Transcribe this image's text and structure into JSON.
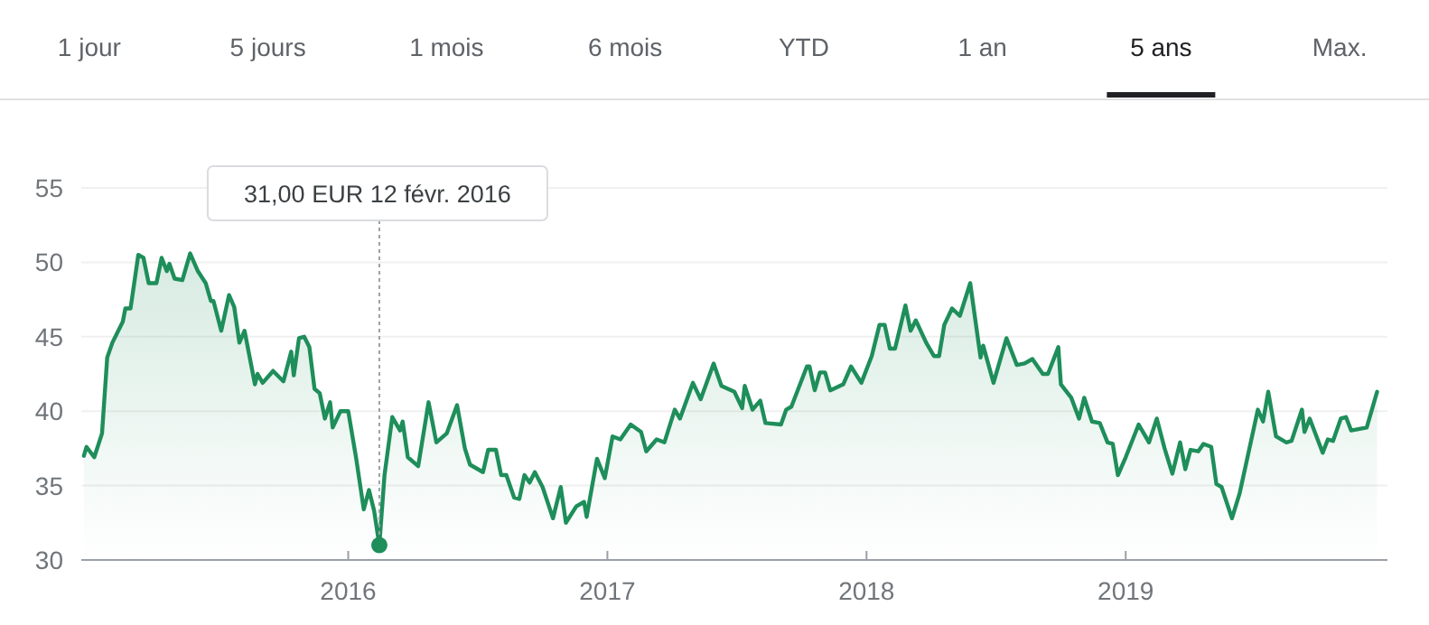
{
  "chart_data": {
    "type": "area",
    "color": "#1e8e5a",
    "x": [
      2014.98,
      2014.99,
      2015.02,
      2015.05,
      2015.07,
      2015.09,
      2015.13,
      2015.14,
      2015.16,
      2015.19,
      2015.21,
      2015.23,
      2015.26,
      2015.28,
      2015.3,
      2015.31,
      2015.33,
      2015.36,
      2015.39,
      2015.42,
      2015.45,
      2015.47,
      2015.48,
      2015.51,
      2015.54,
      2015.56,
      2015.58,
      2015.6,
      2015.64,
      2015.65,
      2015.67,
      2015.71,
      2015.75,
      2015.78,
      2015.79,
      2015.81,
      2015.83,
      2015.85,
      2015.87,
      2015.89,
      2015.91,
      2015.93,
      2015.94,
      2015.97,
      2016.0,
      2016.03,
      2016.06,
      2016.08,
      2016.1,
      2016.12,
      2016.14,
      2016.17,
      2016.2,
      2016.21,
      2016.23,
      2016.27,
      2016.31,
      2016.34,
      2016.38,
      2016.42,
      2016.45,
      2016.47,
      2016.52,
      2016.54,
      2016.57,
      2016.59,
      2016.61,
      2016.64,
      2016.66,
      2016.68,
      2016.7,
      2016.72,
      2016.75,
      2016.79,
      2016.82,
      2016.84,
      2016.88,
      2016.91,
      2016.92,
      2016.96,
      2016.99,
      2017.02,
      2017.05,
      2017.09,
      2017.13,
      2017.15,
      2017.19,
      2017.22,
      2017.26,
      2017.28,
      2017.33,
      2017.36,
      2017.41,
      2017.44,
      2017.49,
      2017.52,
      2017.53,
      2017.56,
      2017.59,
      2017.61,
      2017.67,
      2017.69,
      2017.71,
      2017.77,
      2017.78,
      2017.8,
      2017.82,
      2017.84,
      2017.86,
      2017.91,
      2017.94,
      2017.98,
      2018.02,
      2018.05,
      2018.07,
      2018.09,
      2018.11,
      2018.15,
      2018.17,
      2018.19,
      2018.23,
      2018.26,
      2018.28,
      2018.3,
      2018.33,
      2018.36,
      2018.4,
      2018.44,
      2018.45,
      2018.49,
      2018.54,
      2018.58,
      2018.61,
      2018.64,
      2018.68,
      2018.7,
      2018.74,
      2018.75,
      2018.79,
      2018.82,
      2018.84,
      2018.87,
      2018.9,
      2018.93,
      2018.95,
      2018.97,
      2019.0,
      2019.05,
      2019.09,
      2019.12,
      2019.15,
      2019.18,
      2019.21,
      2019.23,
      2019.25,
      2019.28,
      2019.3,
      2019.33,
      2019.35,
      2019.37,
      2019.41,
      2019.44,
      2019.51,
      2019.53,
      2019.55,
      2019.58,
      2019.62,
      2019.64,
      2019.68,
      2019.69,
      2019.71,
      2019.76,
      2019.78,
      2019.8,
      2019.83,
      2019.85,
      2019.87,
      2019.93,
      2019.97
    ],
    "values": [
      37.0,
      37.6,
      36.9,
      38.5,
      43.6,
      44.6,
      46.0,
      46.9,
      46.9,
      50.5,
      50.3,
      48.6,
      48.6,
      50.3,
      49.4,
      49.9,
      48.9,
      48.8,
      50.6,
      49.4,
      48.6,
      47.4,
      47.4,
      45.4,
      47.8,
      47.0,
      44.6,
      45.4,
      41.8,
      42.5,
      41.9,
      42.7,
      42.0,
      44.0,
      42.4,
      44.9,
      45.0,
      44.3,
      41.5,
      41.2,
      39.5,
      40.6,
      38.9,
      40.0,
      40.0,
      36.9,
      33.4,
      34.7,
      33.3,
      31.0,
      35.7,
      39.6,
      38.7,
      39.3,
      36.9,
      36.3,
      40.6,
      37.9,
      38.5,
      40.4,
      37.5,
      36.4,
      35.9,
      37.4,
      37.4,
      35.7,
      35.7,
      34.2,
      34.1,
      35.7,
      35.2,
      35.9,
      34.9,
      32.8,
      34.9,
      32.5,
      33.6,
      33.9,
      32.9,
      36.8,
      35.5,
      38.3,
      38.1,
      39.1,
      38.6,
      37.3,
      38.1,
      37.9,
      40.1,
      39.5,
      41.9,
      40.8,
      43.2,
      41.7,
      41.3,
      40.2,
      41.7,
      40.1,
      40.7,
      39.2,
      39.1,
      40.1,
      40.3,
      43.0,
      43.0,
      41.4,
      42.6,
      42.6,
      41.4,
      41.8,
      43.0,
      41.9,
      43.7,
      45.8,
      45.8,
      44.2,
      44.2,
      47.1,
      45.4,
      46.1,
      44.6,
      43.7,
      43.7,
      45.8,
      46.9,
      46.4,
      48.6,
      43.6,
      44.4,
      41.9,
      44.9,
      43.1,
      43.2,
      43.5,
      42.5,
      42.5,
      44.3,
      41.8,
      40.9,
      39.5,
      40.9,
      39.3,
      39.2,
      37.9,
      37.8,
      35.7,
      36.9,
      39.1,
      37.9,
      39.5,
      37.5,
      35.8,
      37.9,
      36.1,
      37.4,
      37.3,
      37.8,
      37.6,
      35.1,
      34.9,
      32.8,
      34.5,
      40.1,
      39.3,
      41.3,
      38.3,
      37.9,
      38.0,
      40.1,
      38.6,
      39.5,
      37.2,
      38.1,
      38.0,
      39.5,
      39.6,
      38.7,
      38.9,
      41.3
    ],
    "xlim": [
      2014.97,
      2020.01
    ],
    "ylim": [
      30,
      55
    ],
    "xticks": [
      2016,
      2017,
      2018,
      2019
    ],
    "yticks": [
      30,
      35,
      40,
      45,
      50,
      55
    ],
    "grid": "y",
    "annotations": [
      {
        "text": "31,00 EUR 12 févr. 2016",
        "x": 2016.12,
        "y": 31.0
      },
      "1 jour",
      "5 jours",
      "1 mois",
      "6 mois",
      "YTD",
      "1 an",
      "5 ans",
      "Max."
    ]
  }
}
